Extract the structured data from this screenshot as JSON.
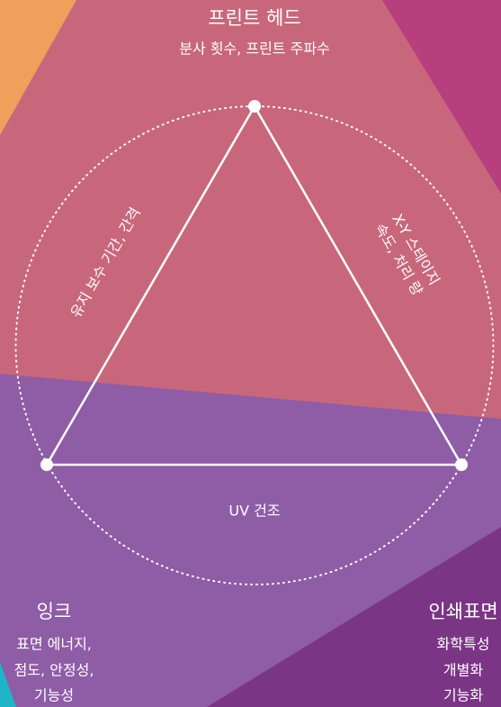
{
  "title": "프린트 헤드",
  "subtitle": "분사 횟수, 프린트 주파수",
  "left_edge": "유지 보수 기간, 간격",
  "right_edge": [
    "X-Y 스테이지",
    "속도, 처리 량"
  ],
  "bottom_edge": "UV 건조",
  "nodes": [
    {
      "title": "잉크",
      "lines": [
        "표면 에너지,",
        "점도, 안정성,",
        "기능성"
      ]
    },
    {
      "title": "인쇄표면",
      "lines": [
        "화학특성",
        "개별화",
        "기능화"
      ]
    }
  ]
}
